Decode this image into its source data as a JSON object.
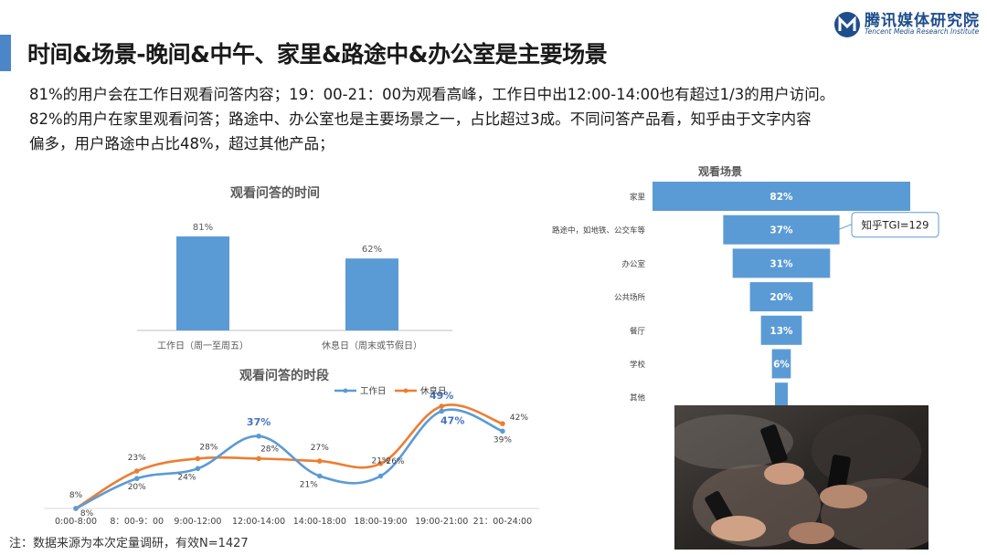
{
  "header": {
    "title": "时间&场景-晚间&中午、家里&路途中&办公室是主要场景",
    "logo_name": "腾讯媒体研究院",
    "logo_en": "Tencent Media Research Institute"
  },
  "description": [
    "81%的用户会在工作日观看问答内容；19：00-21：00为观看高峰，工作日中出12:00-14:00也有超过1/3的用户访问。",
    "82%的用户在家里观看问答；路途中、办公室也是主要场景之一，占比超过3成。不同问答产品看，知乎由于文字内容",
    "偏多，用户路途中占比48%，超过其他产品；"
  ],
  "footnote": "注：数据来源为本次定量调研，有效N=1427",
  "watermark_text": "腾讯媒体研究院",
  "colors": {
    "accent": "#4a86c8",
    "bar": "#5b9bd5",
    "series_work": "#5b9bd5",
    "series_rest": "#ed7d31",
    "funnel": "#5b9bd5"
  },
  "chart_data": [
    {
      "type": "bar",
      "title": "观看问答的时间",
      "categories": [
        "工作日（周一至周五）",
        "休息日（周末或节假日）"
      ],
      "values": [
        81,
        62
      ],
      "value_labels": [
        "81%",
        "62%"
      ],
      "unit": "%",
      "ylim": [
        0,
        100
      ],
      "grid": false
    },
    {
      "type": "line",
      "title": "观看问答的时段",
      "categories": [
        "0:00-8:00",
        "8：00-9：00",
        "9:00-12:00",
        "12:00-14:00",
        "14:00-18:00",
        "18:00-19:00",
        "19:00-21:00",
        "21：00-24:00"
      ],
      "series": [
        {
          "name": "工作日",
          "values": [
            8,
            20,
            24,
            37,
            21,
            21,
            47,
            39
          ],
          "labels": [
            "8%",
            "20%",
            "24%",
            "37%",
            "21%",
            "21%",
            "47%",
            "39%"
          ]
        },
        {
          "name": "休息日",
          "values": [
            8,
            23,
            28,
            28,
            27,
            26,
            49,
            42
          ],
          "labels": [
            "8%",
            "23%",
            "28%",
            "28%",
            "27%",
            "26%",
            "49%",
            "42%"
          ]
        }
      ],
      "ylim": [
        0,
        55
      ],
      "legend": "top-right",
      "grid": false
    },
    {
      "type": "bar",
      "orientation": "funnel",
      "title": "观看场景",
      "categories": [
        "家里",
        "路途中，如地铁、公交车等",
        "办公室",
        "公共场所",
        "餐厅",
        "学校",
        "其他"
      ],
      "values": [
        82,
        37,
        31,
        20,
        13,
        6,
        4
      ],
      "value_labels": [
        "82%",
        "37%",
        "31%",
        "20%",
        "13%",
        "6%",
        ""
      ],
      "unit": "%",
      "annotation": "知乎TGI=129"
    }
  ]
}
